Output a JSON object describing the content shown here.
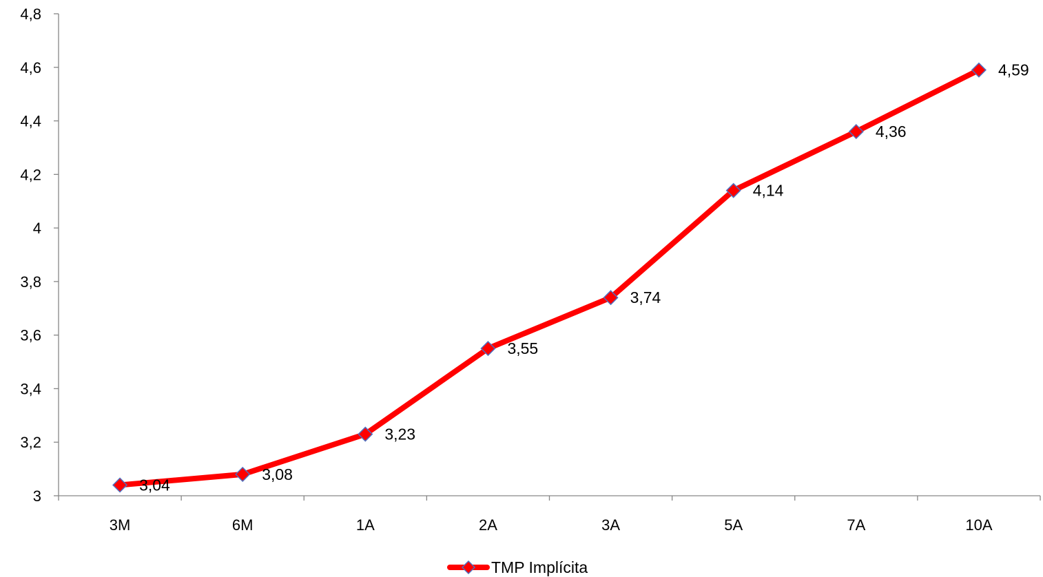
{
  "chart_data": {
    "type": "line",
    "title": "",
    "xlabel": "",
    "ylabel": "",
    "categories": [
      "3M",
      "6M",
      "1A",
      "2A",
      "3A",
      "5A",
      "7A",
      "10A"
    ],
    "series": [
      {
        "name": "TMP Implícita",
        "values": [
          3.04,
          3.08,
          3.23,
          3.55,
          3.74,
          4.14,
          4.36,
          4.59
        ],
        "data_labels": [
          "3,04",
          "3,08",
          "3,23",
          "3,55",
          "3,74",
          "4,14",
          "4,36",
          "4,59"
        ],
        "line_color": "#ff0000",
        "marker": "diamond",
        "marker_fill": "#ff0000",
        "marker_edge": "#4f6fbf"
      }
    ],
    "ylim": [
      3,
      4.8
    ],
    "yticks": [
      3,
      3.2,
      3.4,
      3.6,
      3.8,
      4,
      4.2,
      4.4,
      4.6,
      4.8
    ],
    "ytick_labels": [
      "3",
      "3,2",
      "3,4",
      "3,6",
      "3,8",
      "4",
      "4,2",
      "4,4",
      "4,6",
      "4,8"
    ],
    "grid": false,
    "legend_position": "bottom-center"
  }
}
